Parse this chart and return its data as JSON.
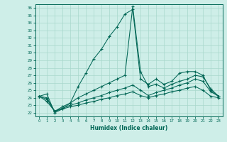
{
  "xlabel": "Humidex (Indice chaleur)",
  "xlim": [
    -0.5,
    23.5
  ],
  "ylim": [
    21.5,
    36.5
  ],
  "yticks": [
    22,
    23,
    24,
    25,
    26,
    27,
    28,
    29,
    30,
    31,
    32,
    33,
    34,
    35,
    36
  ],
  "xticks": [
    0,
    1,
    2,
    3,
    4,
    5,
    6,
    7,
    8,
    9,
    10,
    11,
    12,
    13,
    14,
    15,
    16,
    17,
    18,
    19,
    20,
    21,
    22,
    23
  ],
  "bg_color": "#ceeee8",
  "line_color": "#006655",
  "grid_color": "#a8d8cc",
  "line1_y": [
    24.2,
    24.5,
    22.0,
    22.5,
    23.3,
    25.5,
    27.3,
    29.2,
    30.5,
    32.2,
    33.5,
    35.2,
    35.8,
    26.5,
    25.8,
    26.5,
    25.8,
    26.2,
    27.3,
    27.5,
    27.5,
    27.0,
    25.0,
    24.2
  ],
  "line2_y": [
    24.2,
    24.0,
    22.2,
    22.8,
    23.3,
    24.0,
    24.5,
    25.0,
    25.5,
    26.0,
    26.5,
    27.0,
    36.2,
    27.5,
    25.5,
    25.8,
    25.3,
    25.8,
    26.2,
    26.5,
    27.0,
    26.8,
    25.2,
    24.2
  ],
  "line3_y": [
    24.2,
    23.8,
    22.2,
    22.6,
    23.0,
    23.3,
    23.7,
    24.0,
    24.3,
    24.7,
    25.0,
    25.3,
    25.7,
    25.0,
    24.3,
    24.7,
    25.0,
    25.3,
    25.7,
    26.0,
    26.5,
    26.2,
    24.8,
    24.2
  ],
  "line4_y": [
    24.2,
    23.5,
    22.2,
    22.5,
    22.8,
    23.0,
    23.3,
    23.5,
    23.8,
    24.0,
    24.3,
    24.5,
    24.8,
    24.3,
    24.0,
    24.3,
    24.5,
    24.8,
    25.0,
    25.3,
    25.5,
    25.0,
    24.2,
    24.0
  ]
}
